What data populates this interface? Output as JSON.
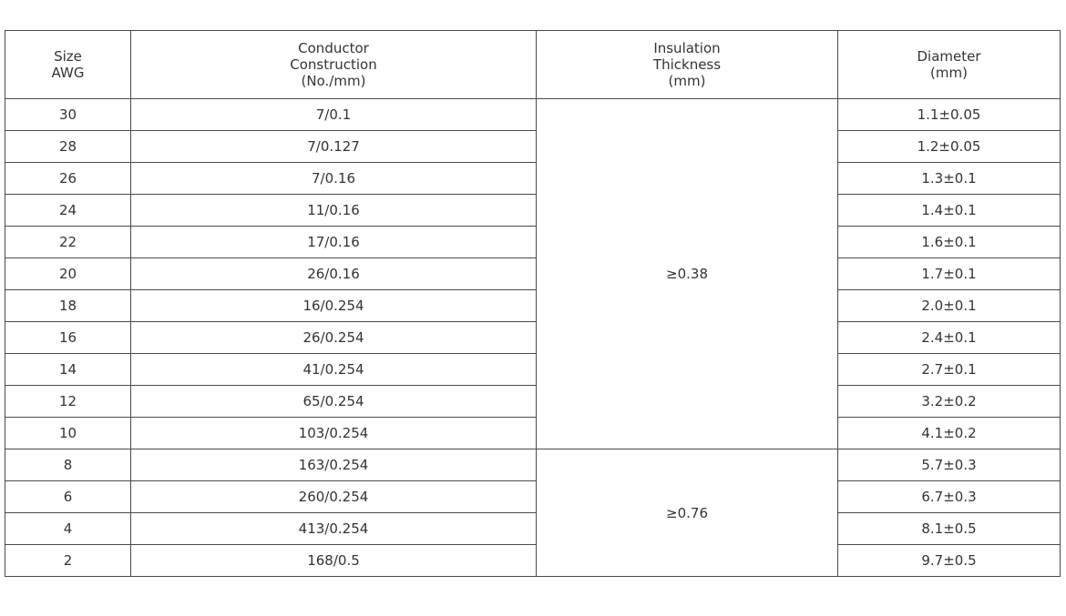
{
  "headers": [
    [
      "Size",
      "AWG"
    ],
    [
      "Conductor",
      "Construction",
      "(No./mm)"
    ],
    [
      "Insulation",
      "Thickness",
      "(mm)"
    ],
    [
      "Diameter",
      "(mm)"
    ]
  ],
  "rows": [
    {
      "size": "30",
      "construction": "7/0.1",
      "diameter": "1.1±0.05"
    },
    {
      "size": "28",
      "construction": "7/0.127",
      "diameter": "1.2±0.05"
    },
    {
      "size": "26",
      "construction": "7/0.16",
      "diameter": "1.3±0.1"
    },
    {
      "size": "24",
      "construction": "11/0.16",
      "diameter": "1.4±0.1"
    },
    {
      "size": "22",
      "construction": "17/0.16",
      "diameter": "1.6±0.1"
    },
    {
      "size": "20",
      "construction": "26/0.16",
      "diameter": "1.7±0.1"
    },
    {
      "size": "18",
      "construction": "16/0.254",
      "diameter": "2.0±0.1"
    },
    {
      "size": "16",
      "construction": "26/0.254",
      "diameter": "2.4±0.1"
    },
    {
      "size": "14",
      "construction": "41/0.254",
      "diameter": "2.7±0.1"
    },
    {
      "size": "12",
      "construction": "65/0.254",
      "diameter": "3.2±0.2"
    },
    {
      "size": "10",
      "construction": "103/0.254",
      "diameter": "4.1±0.2"
    },
    {
      "size": "8",
      "construction": "163/0.254",
      "diameter": "5.7±0.3"
    },
    {
      "size": "6",
      "construction": "260/0.254",
      "diameter": "6.7±0.3"
    },
    {
      "size": "4",
      "construction": "413/0.254",
      "diameter": "8.1±0.5"
    },
    {
      "size": "2",
      "construction": "168/0.5",
      "diameter": "9.7±0.5"
    }
  ],
  "insulation_groups": [
    {
      "value": "≥0.38",
      "span": 11
    },
    {
      "value": "≥0.76",
      "span": 4
    }
  ]
}
